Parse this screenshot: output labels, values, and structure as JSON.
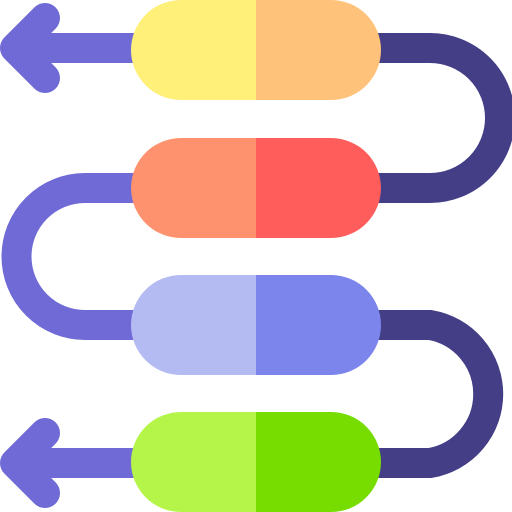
{
  "colors": {
    "path_left": "#6f6ad6",
    "path_right": "#433e85",
    "pills": [
      {
        "left": "#fff07a",
        "right": "#ffc27a"
      },
      {
        "left": "#ff926e",
        "right": "#ff5c5c"
      },
      {
        "left": "#b4bbf2",
        "right": "#7b85eb"
      },
      {
        "left": "#b5f54a",
        "right": "#77dd00"
      }
    ]
  },
  "icons": [
    "arrow-left-icon",
    "arrow-left-icon"
  ],
  "pill_count": 4
}
